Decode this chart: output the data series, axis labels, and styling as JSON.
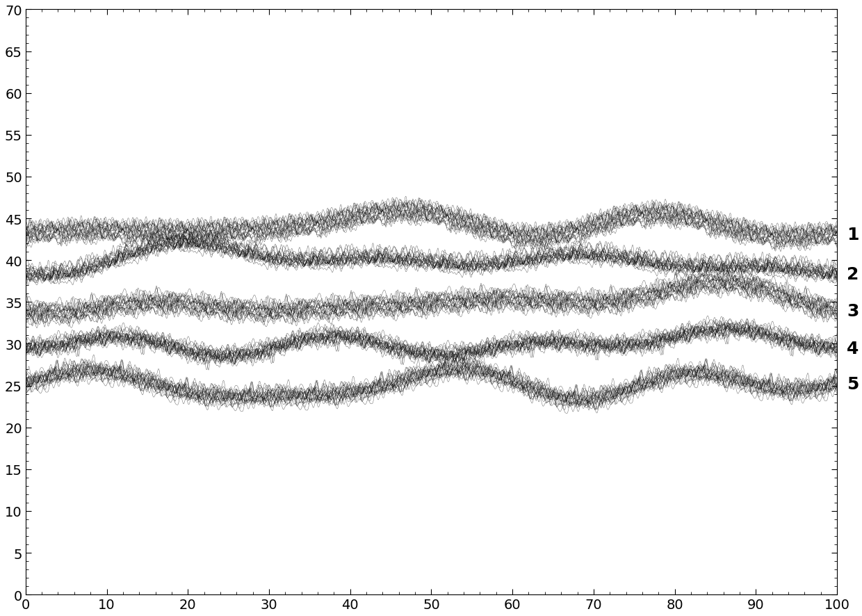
{
  "xlim": [
    0,
    100
  ],
  "ylim": [
    0,
    70
  ],
  "xticks": [
    0,
    10,
    20,
    30,
    40,
    50,
    60,
    70,
    80,
    90,
    100
  ],
  "yticks": [
    0,
    5,
    10,
    15,
    20,
    25,
    30,
    35,
    40,
    45,
    50,
    55,
    60,
    65,
    70
  ],
  "line_centers": [
    44,
    40,
    35,
    30,
    25
  ],
  "line_labels": [
    "1",
    "2",
    "3",
    "4",
    "5"
  ],
  "n_points": 2000,
  "line_color": "#000000",
  "background_color": "#ffffff",
  "label_fontsize": 18,
  "tick_fontsize": 14
}
